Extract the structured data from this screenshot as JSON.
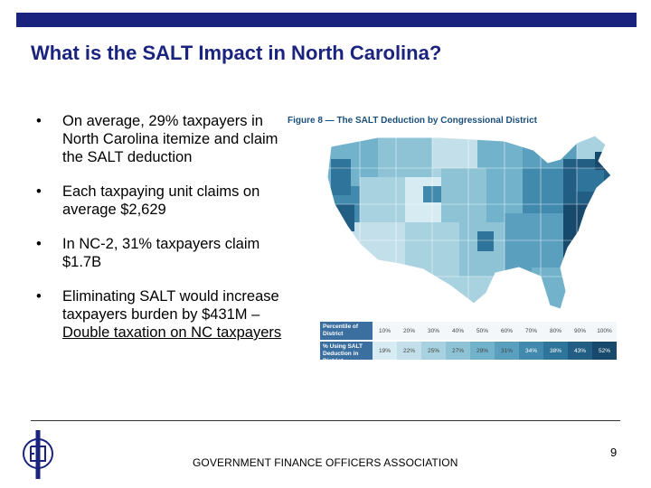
{
  "title": "What is the SALT Impact in North Carolina?",
  "bullets": [
    {
      "text": "On average, 29% taxpayers in North Carolina itemize and claim the SALT deduction"
    },
    {
      "text": "Each taxpaying unit claims on average $2,629"
    },
    {
      "text": "In NC-2, 31% taxpayers claim $1.7B"
    },
    {
      "text_before": "Eliminating SALT would increase taxpayers burden by $431M – ",
      "text_underlined": "Double taxation on NC taxpayers"
    }
  ],
  "bullet_symbol": "•",
  "figure": {
    "title": "Figure 8 — The SALT Deduction by Congressional District",
    "legend": {
      "row1_label": "Percentile of District",
      "row1_values": [
        "10%",
        "20%",
        "30%",
        "40%",
        "50%",
        "60%",
        "70%",
        "80%",
        "90%",
        "100%"
      ],
      "row2_label": "% Using SALT Deduction in District",
      "row2_values": [
        "19%",
        "22%",
        "25%",
        "27%",
        "29%",
        "31%",
        "34%",
        "38%",
        "43%",
        "52%"
      ],
      "colors": [
        "#d7ecf2",
        "#c3e0ea",
        "#a9d2e0",
        "#8ec3d6",
        "#72b2cb",
        "#5aa0be",
        "#418aad",
        "#2f749a",
        "#225e84",
        "#17496c"
      ]
    }
  },
  "footer": "GOVERNMENT FINANCE OFFICERS ASSOCIATION",
  "page_number": "9",
  "colors": {
    "accent": "#1a237e",
    "map_dark": "#1d5478",
    "map_mid": "#5aa0be",
    "map_light": "#a9d2e0"
  }
}
